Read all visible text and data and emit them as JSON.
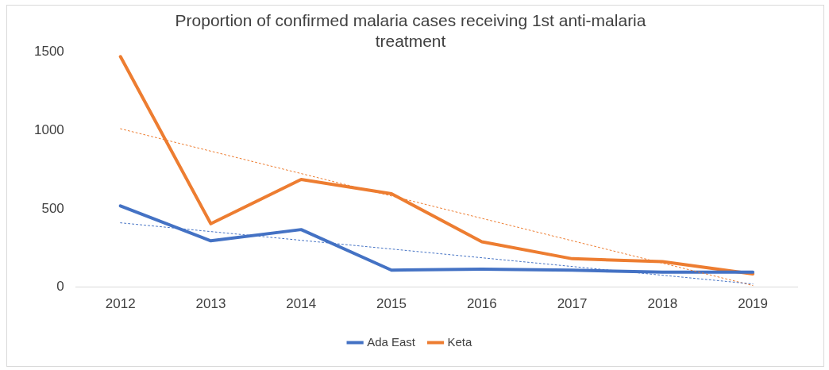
{
  "chart_data": {
    "type": "line",
    "title": "Proportion of confirmed malaria cases receiving 1st anti-malaria treatment",
    "categories": [
      "2012",
      "2013",
      "2014",
      "2015",
      "2016",
      "2017",
      "2018",
      "2019"
    ],
    "series": [
      {
        "name": "Ada East",
        "color": "#4472c4",
        "values": [
          518,
          295,
          367,
          108,
          114,
          108,
          96,
          96
        ]
      },
      {
        "name": "Keta",
        "color": "#ed7d31",
        "values": [
          1470,
          404,
          687,
          596,
          289,
          181,
          163,
          84
        ]
      },
      {
        "type": "line",
        "color": "#4472c4",
        "line_style": "dotted",
        "values": [
          410,
          null,
          null,
          null,
          null,
          null,
          null,
          20
        ]
      },
      {
        "type": "line",
        "color": "#ed7d31",
        "line_style": "dotted",
        "values": [
          1010,
          null,
          null,
          null,
          null,
          null,
          null,
          10
        ]
      }
    ],
    "ylim": [
      0,
      1500
    ],
    "yticks": [
      0,
      500,
      1000,
      1500
    ],
    "grid": false,
    "legend": "bottom",
    "marker": "none",
    "line_style": "solid"
  }
}
